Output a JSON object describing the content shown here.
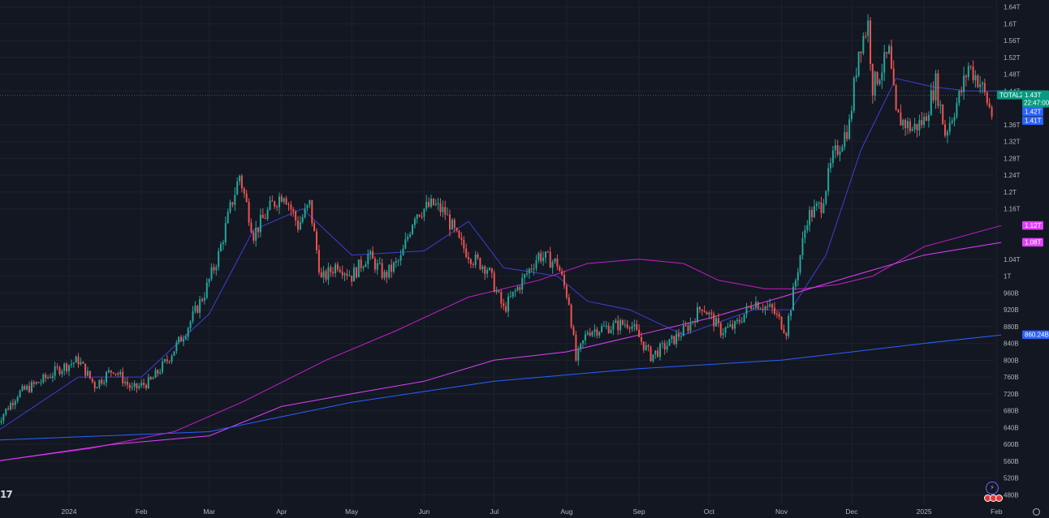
{
  "chart_data": {
    "type": "candlestick",
    "symbol_tag": "TOTAL2",
    "countdown": "22:47:00",
    "last_price_label": "1.43T",
    "price_tags": [
      {
        "label": "1.42T",
        "value": 1.42,
        "color": "#2962ff"
      },
      {
        "label": "1.41T",
        "value": 1.41,
        "color": "#2962ff"
      },
      {
        "label": "1.12T",
        "value": 1.12,
        "color": "#e040fb"
      },
      {
        "label": "1.08T",
        "value": 1.08,
        "color": "#e040fb"
      },
      {
        "label": "860.24B",
        "value": 0.86024,
        "color": "#2962ff"
      }
    ],
    "ylim": [
      0.44,
      1.65
    ],
    "y_ticks": [
      {
        "label": "1.64T",
        "value": 1.64
      },
      {
        "label": "1.6T",
        "value": 1.6
      },
      {
        "label": "1.56T",
        "value": 1.56
      },
      {
        "label": "1.52T",
        "value": 1.52
      },
      {
        "label": "1.48T",
        "value": 1.48
      },
      {
        "label": "1.44T",
        "value": 1.44
      },
      {
        "label": "1.36T",
        "value": 1.36
      },
      {
        "label": "1.32T",
        "value": 1.32
      },
      {
        "label": "1.28T",
        "value": 1.28
      },
      {
        "label": "1.24T",
        "value": 1.24
      },
      {
        "label": "1.2T",
        "value": 1.2
      },
      {
        "label": "1.16T",
        "value": 1.16
      },
      {
        "label": "1.04T",
        "value": 1.04
      },
      {
        "label": "1T",
        "value": 1.0
      },
      {
        "label": "960B",
        "value": 0.96
      },
      {
        "label": "920B",
        "value": 0.92
      },
      {
        "label": "880B",
        "value": 0.88
      },
      {
        "label": "840B",
        "value": 0.84
      },
      {
        "label": "800B",
        "value": 0.8
      },
      {
        "label": "760B",
        "value": 0.76
      },
      {
        "label": "720B",
        "value": 0.72
      },
      {
        "label": "680B",
        "value": 0.68
      },
      {
        "label": "640B",
        "value": 0.64
      },
      {
        "label": "600B",
        "value": 0.6
      },
      {
        "label": "560B",
        "value": 0.56
      },
      {
        "label": "520B",
        "value": 0.52
      },
      {
        "label": "480B",
        "value": 0.48
      }
    ],
    "x_ticks": [
      {
        "label": "2024",
        "date": "2024-01-01"
      },
      {
        "label": "Feb",
        "date": "2024-02-01"
      },
      {
        "label": "Mar",
        "date": "2024-03-01"
      },
      {
        "label": "Apr",
        "date": "2024-04-01"
      },
      {
        "label": "May",
        "date": "2024-05-01"
      },
      {
        "label": "Jun",
        "date": "2024-06-01"
      },
      {
        "label": "Jul",
        "date": "2024-07-01"
      },
      {
        "label": "Aug",
        "date": "2024-08-01"
      },
      {
        "label": "Sep",
        "date": "2024-09-01"
      },
      {
        "label": "Oct",
        "date": "2024-10-01"
      },
      {
        "label": "Nov",
        "date": "2024-11-01"
      },
      {
        "label": "Dec",
        "date": "2024-12-01"
      },
      {
        "label": "2025",
        "date": "2025-01-01"
      },
      {
        "label": "Feb",
        "date": "2025-02-01"
      }
    ],
    "xlim": [
      "2023-11-28",
      "2025-02-07"
    ],
    "close_series": [
      [
        "2023-12-01",
        0.65
      ],
      [
        "2023-12-10",
        0.72
      ],
      [
        "2023-12-20",
        0.75
      ],
      [
        "2023-12-28",
        0.78
      ],
      [
        "2024-01-05",
        0.8
      ],
      [
        "2024-01-12",
        0.74
      ],
      [
        "2024-01-20",
        0.78
      ],
      [
        "2024-01-28",
        0.73
      ],
      [
        "2024-02-05",
        0.75
      ],
      [
        "2024-02-12",
        0.8
      ],
      [
        "2024-02-20",
        0.87
      ],
      [
        "2024-02-28",
        0.96
      ],
      [
        "2024-03-05",
        1.05
      ],
      [
        "2024-03-10",
        1.16
      ],
      [
        "2024-03-14",
        1.24
      ],
      [
        "2024-03-20",
        1.1
      ],
      [
        "2024-03-28",
        1.17
      ],
      [
        "2024-04-02",
        1.2
      ],
      [
        "2024-04-08",
        1.12
      ],
      [
        "2024-04-13",
        1.17
      ],
      [
        "2024-04-18",
        0.99
      ],
      [
        "2024-04-25",
        1.03
      ],
      [
        "2024-05-01",
        1.0
      ],
      [
        "2024-05-08",
        1.05
      ],
      [
        "2024-05-15",
        1.0
      ],
      [
        "2024-05-22",
        1.04
      ],
      [
        "2024-05-28",
        1.15
      ],
      [
        "2024-06-05",
        1.17
      ],
      [
        "2024-06-10",
        1.15
      ],
      [
        "2024-06-16",
        1.08
      ],
      [
        "2024-06-22",
        1.04
      ],
      [
        "2024-06-28",
        1.02
      ],
      [
        "2024-07-05",
        0.92
      ],
      [
        "2024-07-12",
        0.98
      ],
      [
        "2024-07-20",
        1.05
      ],
      [
        "2024-07-28",
        1.03
      ],
      [
        "2024-08-02",
        0.94
      ],
      [
        "2024-08-05",
        0.8
      ],
      [
        "2024-08-10",
        0.87
      ],
      [
        "2024-08-20",
        0.88
      ],
      [
        "2024-08-28",
        0.89
      ],
      [
        "2024-09-06",
        0.81
      ],
      [
        "2024-09-14",
        0.84
      ],
      [
        "2024-09-22",
        0.88
      ],
      [
        "2024-09-28",
        0.93
      ],
      [
        "2024-10-06",
        0.87
      ],
      [
        "2024-10-12",
        0.88
      ],
      [
        "2024-10-20",
        0.94
      ],
      [
        "2024-10-28",
        0.92
      ],
      [
        "2024-11-03",
        0.87
      ],
      [
        "2024-11-06",
        0.96
      ],
      [
        "2024-11-12",
        1.14
      ],
      [
        "2024-11-18",
        1.17
      ],
      [
        "2024-11-23",
        1.28
      ],
      [
        "2024-11-30",
        1.36
      ],
      [
        "2024-12-04",
        1.54
      ],
      [
        "2024-12-08",
        1.6
      ],
      [
        "2024-12-10",
        1.45
      ],
      [
        "2024-12-17",
        1.53
      ],
      [
        "2024-12-20",
        1.38
      ],
      [
        "2024-12-27",
        1.35
      ],
      [
        "2025-01-01",
        1.37
      ],
      [
        "2025-01-06",
        1.46
      ],
      [
        "2025-01-10",
        1.34
      ],
      [
        "2025-01-17",
        1.44
      ],
      [
        "2025-01-20",
        1.5
      ],
      [
        "2025-01-25",
        1.46
      ],
      [
        "2025-01-31",
        1.37
      ],
      [
        "2025-02-03",
        1.43
      ]
    ],
    "ma_series": [
      {
        "color": "#3f3fd1",
        "points": [
          [
            "2023-12-01",
            0.63
          ],
          [
            "2024-01-05",
            0.76
          ],
          [
            "2024-02-01",
            0.76
          ],
          [
            "2024-03-01",
            0.91
          ],
          [
            "2024-03-20",
            1.11
          ],
          [
            "2024-04-10",
            1.16
          ],
          [
            "2024-05-01",
            1.05
          ],
          [
            "2024-06-01",
            1.06
          ],
          [
            "2024-06-20",
            1.13
          ],
          [
            "2024-07-05",
            1.02
          ],
          [
            "2024-07-28",
            1.0
          ],
          [
            "2024-08-10",
            0.94
          ],
          [
            "2024-08-28",
            0.92
          ],
          [
            "2024-09-20",
            0.86
          ],
          [
            "2024-10-20",
            0.92
          ],
          [
            "2024-11-05",
            0.92
          ],
          [
            "2024-11-20",
            1.05
          ],
          [
            "2024-12-05",
            1.3
          ],
          [
            "2024-12-20",
            1.47
          ],
          [
            "2025-01-05",
            1.45
          ],
          [
            "2025-01-20",
            1.44
          ],
          [
            "2025-02-03",
            1.44
          ]
        ]
      },
      {
        "color": "#c21fc7",
        "points": [
          [
            "2023-12-01",
            0.56
          ],
          [
            "2024-01-10",
            0.59
          ],
          [
            "2024-02-15",
            0.63
          ],
          [
            "2024-03-15",
            0.7
          ],
          [
            "2024-04-20",
            0.8
          ],
          [
            "2024-05-20",
            0.87
          ],
          [
            "2024-06-20",
            0.95
          ],
          [
            "2024-07-20",
            0.99
          ],
          [
            "2024-08-10",
            1.03
          ],
          [
            "2024-09-01",
            1.04
          ],
          [
            "2024-09-20",
            1.03
          ],
          [
            "2024-10-05",
            0.99
          ],
          [
            "2024-10-25",
            0.97
          ],
          [
            "2024-11-10",
            0.97
          ],
          [
            "2024-11-25",
            0.98
          ],
          [
            "2024-12-10",
            1.0
          ],
          [
            "2025-01-01",
            1.07
          ],
          [
            "2025-02-03",
            1.12
          ]
        ]
      },
      {
        "color": "#e040fb",
        "points": [
          [
            "2023-12-01",
            0.56
          ],
          [
            "2024-01-20",
            0.6
          ],
          [
            "2024-03-01",
            0.62
          ],
          [
            "2024-04-01",
            0.69
          ],
          [
            "2024-05-01",
            0.72
          ],
          [
            "2024-06-01",
            0.75
          ],
          [
            "2024-07-01",
            0.8
          ],
          [
            "2024-08-01",
            0.82
          ],
          [
            "2024-09-01",
            0.86
          ],
          [
            "2024-10-01",
            0.9
          ],
          [
            "2024-11-01",
            0.95
          ],
          [
            "2024-12-01",
            1.0
          ],
          [
            "2025-01-01",
            1.05
          ],
          [
            "2025-02-03",
            1.08
          ]
        ]
      },
      {
        "color": "#2962ff",
        "points": [
          [
            "2023-12-01",
            0.61
          ],
          [
            "2024-03-01",
            0.63
          ],
          [
            "2024-05-01",
            0.7
          ],
          [
            "2024-07-01",
            0.75
          ],
          [
            "2024-09-01",
            0.78
          ],
          [
            "2024-11-01",
            0.8
          ],
          [
            "2025-01-01",
            0.84
          ],
          [
            "2025-02-03",
            0.86
          ]
        ]
      }
    ],
    "up_color": "#26a69a",
    "down_color": "#ef5350",
    "grid": true,
    "background": "#131722"
  },
  "branding": {
    "logo_text": "17"
  },
  "toolbar": {
    "bolt_icon": "lightning-icon",
    "flags_icon": "event-flags-icon",
    "settings_icon": "gear-icon"
  }
}
